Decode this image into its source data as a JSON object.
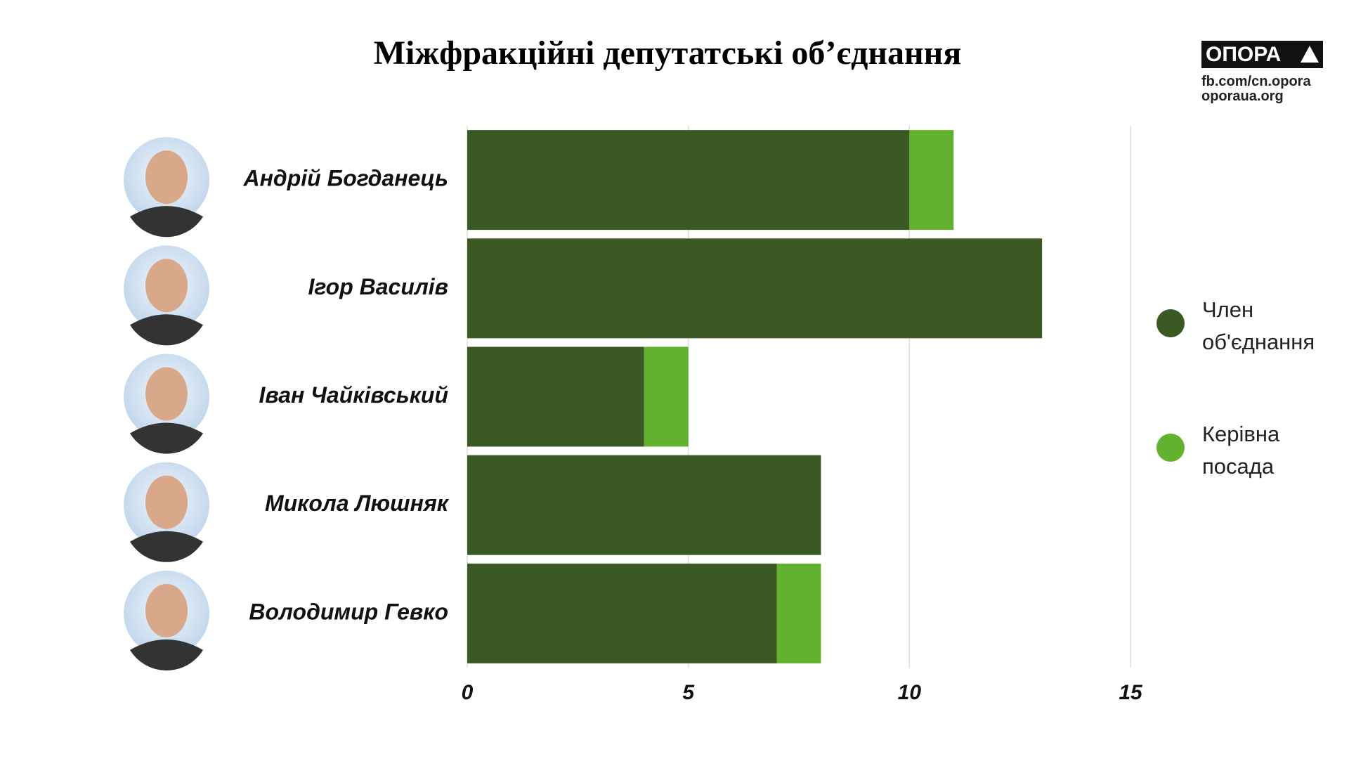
{
  "chart_data": {
    "type": "barh_stacked",
    "title": "Міжфракційні депутатські об’єднання",
    "logo": {
      "name": "ОПОРА",
      "links": [
        "fb.com/cn.opora",
        "oporaua.org"
      ]
    },
    "categories": [
      "Андрій Богданець",
      "Ігор Василів",
      "Іван Чайківський",
      "Микола Люшняк",
      "Володимир Гевко"
    ],
    "series": [
      {
        "name": "Член об'єднання",
        "color": "#3b5a23",
        "values": [
          10,
          13,
          4,
          8,
          7
        ]
      },
      {
        "name": "Керівна посада",
        "color": "#62b22f",
        "values": [
          1,
          0,
          1,
          0,
          1
        ]
      }
    ],
    "xlim": [
      0,
      15
    ],
    "xticks": [
      0,
      5,
      10,
      15
    ],
    "grid": true,
    "legend": "right"
  }
}
